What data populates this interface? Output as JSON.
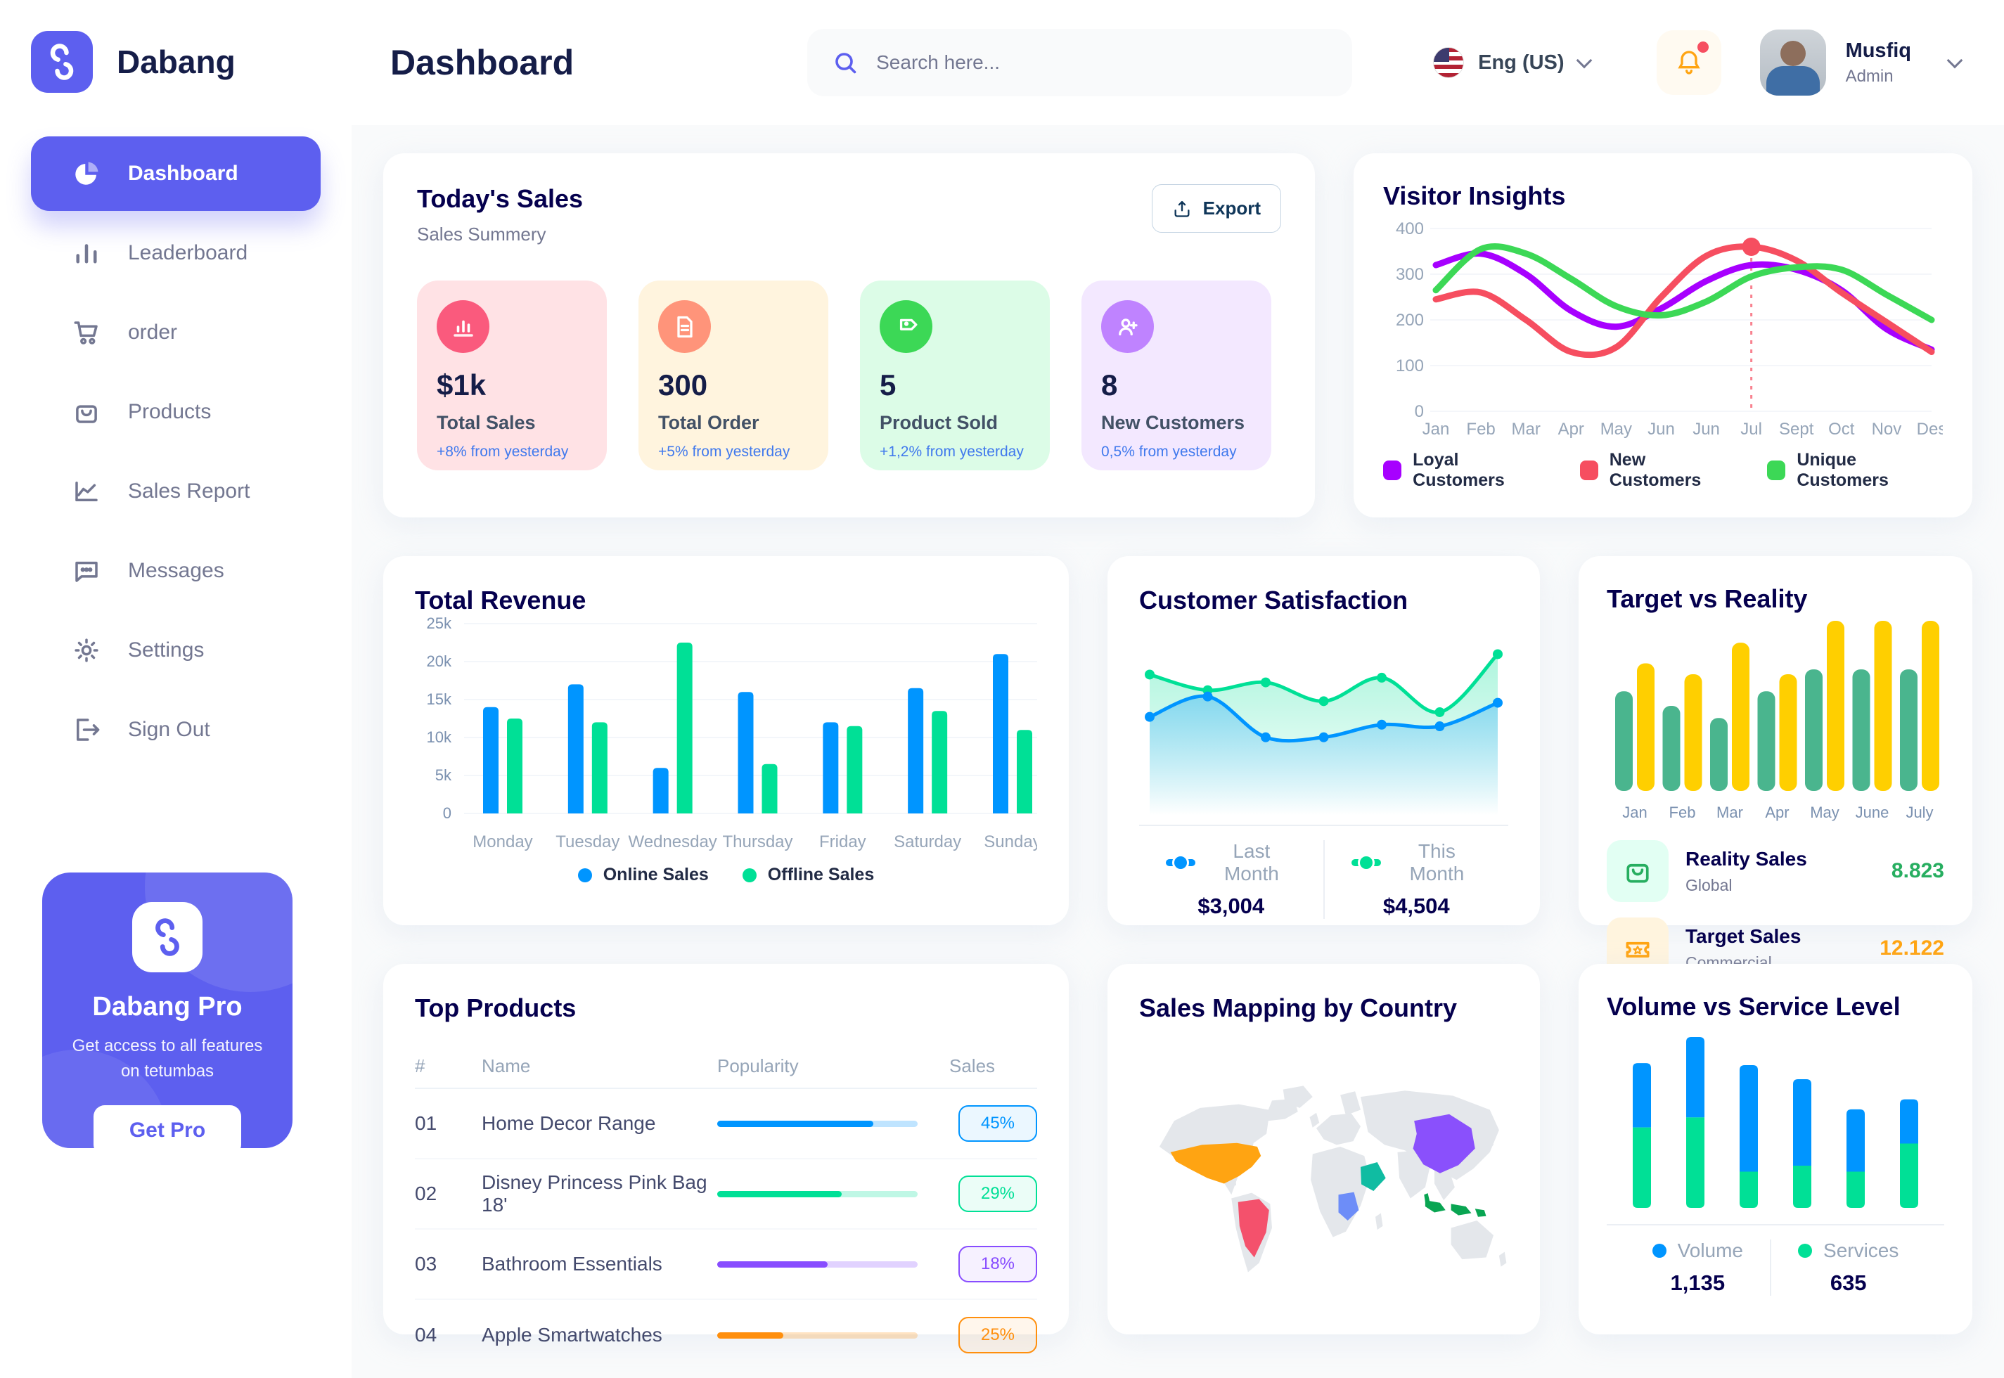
{
  "app": {
    "name": "Dabang"
  },
  "header": {
    "title": "Dashboard",
    "search_placeholder": "Search here...",
    "language": "Eng (US)",
    "user": {
      "name": "Musfiq",
      "role": "Admin"
    }
  },
  "sidebar": {
    "items": [
      {
        "label": "Dashboard",
        "icon": "pie-chart",
        "active": true
      },
      {
        "label": "Leaderboard",
        "icon": "bar-chart",
        "active": false
      },
      {
        "label": "order",
        "icon": "cart",
        "active": false
      },
      {
        "label": "Products",
        "icon": "bag",
        "active": false
      },
      {
        "label": "Sales Report",
        "icon": "line-chart",
        "active": false
      },
      {
        "label": "Messages",
        "icon": "chat",
        "active": false
      },
      {
        "label": "Settings",
        "icon": "gear",
        "active": false
      },
      {
        "label": "Sign Out",
        "icon": "sign-out",
        "active": false
      }
    ],
    "pro_card": {
      "title": "Dabang Pro",
      "subtitle": "Get access to all features on tetumbas",
      "button": "Get Pro"
    }
  },
  "today_sales": {
    "title": "Today's Sales",
    "subtitle": "Sales Summery",
    "export_label": "Export",
    "stats": [
      {
        "value": "$1k",
        "label": "Total Sales",
        "delta": "+8% from yesterday",
        "bg": "#FFE2E5",
        "circle": "#FA5A7D",
        "icon": "stat-chart"
      },
      {
        "value": "300",
        "label": "Total Order",
        "delta": "+5% from yesterday",
        "bg": "#FFF4DE",
        "circle": "#FF947A",
        "icon": "stat-file"
      },
      {
        "value": "5",
        "label": "Product Sold",
        "delta": "+1,2% from yesterday",
        "bg": "#DCFCE7",
        "circle": "#3CD856",
        "icon": "stat-tag"
      },
      {
        "value": "8",
        "label": "New Customers",
        "delta": "0,5% from yesterday",
        "bg": "#F3E8FF",
        "circle": "#BF83FF",
        "icon": "stat-user"
      }
    ]
  },
  "top_products": {
    "title": "Top Products",
    "headers": [
      "#",
      "Name",
      "Popularity",
      "Sales"
    ],
    "rows": [
      {
        "num": "01",
        "name": "Home Decor Range",
        "popularity": 78,
        "sales": "45%",
        "color": "#0095FF"
      },
      {
        "num": "02",
        "name": "Disney Princess Pink Bag 18'",
        "popularity": 62,
        "sales": "29%",
        "color": "#00E096"
      },
      {
        "num": "03",
        "name": "Bathroom Essentials",
        "popularity": 55,
        "sales": "18%",
        "color": "#884DFF"
      },
      {
        "num": "04",
        "name": "Apple Smartwatches",
        "popularity": 33,
        "sales": "25%",
        "color": "#FF8F0D"
      }
    ]
  },
  "chart_data": [
    {
      "id": "visitor_insights",
      "type": "line",
      "title": "Visitor Insights",
      "x": [
        "Jan",
        "Feb",
        "Mar",
        "Apr",
        "May",
        "Jun",
        "Jun",
        "Jul",
        "Sept",
        "Oct",
        "Nov",
        "Des"
      ],
      "ylim": [
        0,
        400
      ],
      "yticks": [
        "0",
        "100",
        "200",
        "300",
        "400"
      ],
      "grid": true,
      "legend_position": "bottom",
      "series": [
        {
          "name": "Loyal Customers",
          "color": "#A700FF",
          "values": [
            320,
            345,
            300,
            220,
            185,
            225,
            285,
            320,
            310,
            265,
            180,
            135
          ]
        },
        {
          "name": "New Customers",
          "color": "#F64E60",
          "values": [
            245,
            260,
            200,
            130,
            140,
            250,
            340,
            360,
            330,
            260,
            195,
            130
          ]
        },
        {
          "name": "Unique Customers",
          "color": "#3CD856",
          "values": [
            265,
            355,
            345,
            290,
            230,
            210,
            240,
            295,
            315,
            310,
            255,
            200
          ]
        }
      ],
      "annotation": {
        "x_index": 7,
        "x_label": "Jul",
        "value": 360,
        "color": "#F64E60"
      }
    },
    {
      "id": "total_revenue",
      "type": "bar",
      "title": "Total Revenue",
      "categories": [
        "Monday",
        "Tuesday",
        "Wednesday",
        "Thursday",
        "Friday",
        "Saturday",
        "Sunday"
      ],
      "ylim": [
        0,
        25000
      ],
      "yticks": [
        "0",
        "5k",
        "10k",
        "15k",
        "20k",
        "25k"
      ],
      "grid": true,
      "legend_position": "bottom",
      "series": [
        {
          "name": "Online Sales",
          "color": "#0095FF",
          "values": [
            14000,
            17000,
            6000,
            16000,
            12000,
            16500,
            21000
          ]
        },
        {
          "name": "Offline Sales",
          "color": "#00E096",
          "values": [
            12500,
            12000,
            22500,
            6500,
            11500,
            13500,
            11000
          ]
        }
      ]
    },
    {
      "id": "customer_satisfaction",
      "type": "area",
      "title": "Customer Satisfaction",
      "ylim": [
        0,
        100
      ],
      "grid": false,
      "legend_position": "bottom",
      "series": [
        {
          "name": "Last Month",
          "color": "#0095FF",
          "total": "$3,004",
          "values": [
            45,
            58,
            32,
            32,
            40,
            39,
            54
          ]
        },
        {
          "name": "This Month",
          "color": "#00E096",
          "total": "$4,504",
          "values": [
            72,
            62,
            67,
            55,
            70,
            48,
            85
          ]
        }
      ]
    },
    {
      "id": "target_vs_reality",
      "type": "bar",
      "title": "Target vs Reality",
      "categories": [
        "Jan",
        "Feb",
        "Mar",
        "Apr",
        "May",
        "June",
        "July"
      ],
      "ylim": [
        0,
        14
      ],
      "grid": false,
      "legend_position": "bottom",
      "series": [
        {
          "name": "Reality Sales",
          "color": "#4AB58E",
          "values": [
            8.2,
            7,
            6,
            8.2,
            10,
            10,
            10
          ]
        },
        {
          "name": "Target Sales",
          "color": "#FFCF00",
          "values": [
            10.5,
            9.6,
            12.2,
            9.6,
            14,
            14,
            14
          ]
        }
      ],
      "legend": [
        {
          "label": "Reality Sales",
          "sublabel": "Global",
          "value": "8.823",
          "value_color": "#27AE60",
          "chip_bg": "#E2FFF3",
          "icon": "bag-green"
        },
        {
          "label": "Target Sales",
          "sublabel": "Commercial",
          "value": "12.122",
          "value_color": "#FFA412",
          "chip_bg": "#FFF4DE",
          "icon": "ticket-orange"
        }
      ]
    },
    {
      "id": "volume_service",
      "type": "bar",
      "stacked": true,
      "title": "Volume vs Service Level",
      "ylim": [
        0,
        85
      ],
      "grid": false,
      "legend_position": "bottom",
      "series": [
        {
          "name": "Volume",
          "color": "#0095FF",
          "total": "1,135",
          "values": [
            32,
            40,
            53,
            43,
            31,
            22
          ]
        },
        {
          "name": "Services",
          "color": "#00E096",
          "total": "635",
          "values": [
            40,
            45,
            18,
            21,
            18,
            32
          ]
        }
      ]
    },
    {
      "id": "sales_map",
      "type": "heatmap",
      "title": "Sales Mapping by Country",
      "highlights": [
        {
          "country": "united-states",
          "color": "#FFA412"
        },
        {
          "country": "brazil",
          "color": "#F4516C"
        },
        {
          "country": "saudi-arabia",
          "color": "#10BCA2"
        },
        {
          "country": "dr-congo",
          "color": "#6D8DF8"
        },
        {
          "country": "china",
          "color": "#8A50FC"
        },
        {
          "country": "indonesia",
          "color": "#09A552"
        }
      ]
    }
  ],
  "theme": {
    "primary": "#5D5FEF",
    "heading": "#05004E",
    "text_dark": "#151D48",
    "text_muted": "#737791",
    "axis": "#7B91B0",
    "bg": "#F9FAFB",
    "delta_blue": "#4079ED",
    "map_land": "#E4E7EB"
  }
}
